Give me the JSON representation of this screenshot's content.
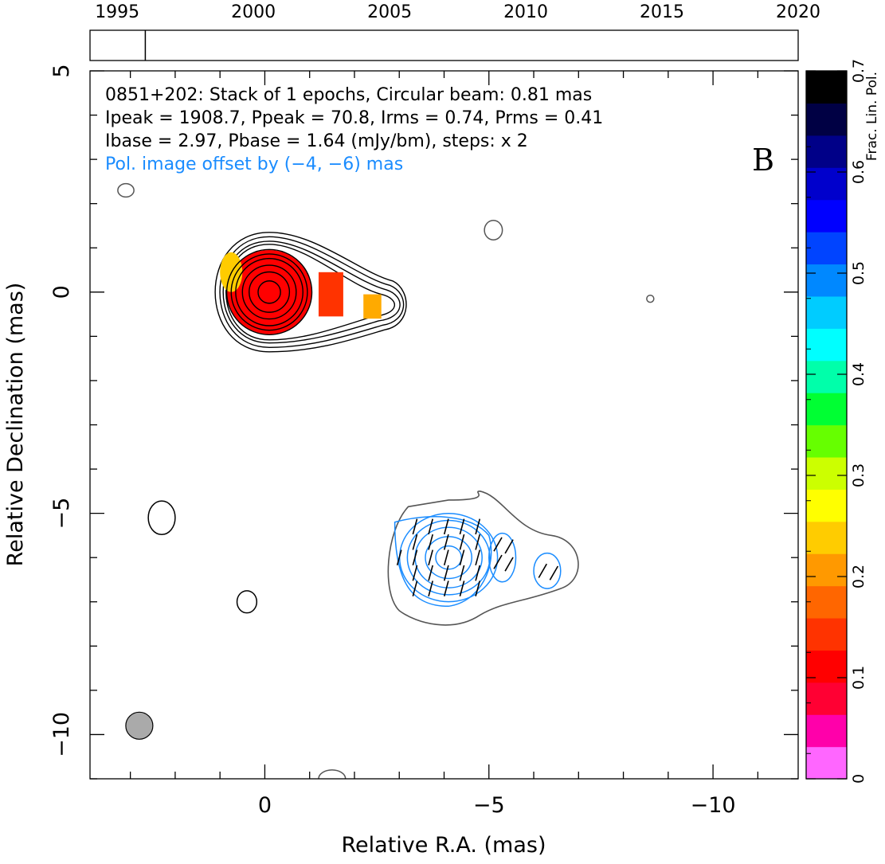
{
  "chart_data": {
    "type": "contour",
    "panel_letter": "B",
    "timeline": {
      "tick_labels": [
        "1995",
        "2000",
        "2005",
        "2010",
        "2015",
        "2020"
      ],
      "ticks": [
        1995,
        2000,
        2005,
        2010,
        2015,
        2020
      ],
      "range": [
        1994.0,
        2020.0
      ],
      "epochs": [
        1996.03
      ]
    },
    "title_lines": [
      "0851+202: Stack of 1 epochs, Circular beam: 0.81 mas",
      "Ipeak = 1908.7, Ppeak = 70.8, Irms = 0.74, Prms = 0.41",
      "Ibase = 2.97, Pbase = 1.64 (mJy/bm), steps: x 2"
    ],
    "offset_note": "Pol. image offset by (−4, −6) mas",
    "xlabel": "Relative R.A. (mas)",
    "ylabel": "Relative Declination (mas)",
    "xlim": [
      3.9,
      -11.9
    ],
    "ylim": [
      -11.0,
      5.0
    ],
    "x_ticks": [
      0,
      -5,
      -10
    ],
    "x_tick_labels": [
      "0",
      "−5",
      "−10"
    ],
    "y_ticks": [
      5,
      0,
      -5,
      -10
    ],
    "y_tick_labels": [
      "5",
      "0",
      "−5",
      "−10"
    ],
    "beam_circle": {
      "x": 2.8,
      "y": -9.8,
      "fwhm_mas": 0.81
    },
    "colorbar": {
      "label": "Frac. Lin. Pol.",
      "range": [
        0,
        0.7
      ],
      "tick_values": [
        0,
        0.1,
        0.2,
        0.3,
        0.4,
        0.5,
        0.6,
        0.7
      ],
      "tick_labels": [
        "0",
        "0.1",
        "0.2",
        "0.3",
        "0.4",
        "0.5",
        "0.6",
        "0.7"
      ],
      "colors": [
        "#ff66ff",
        "#ff00aa",
        "#ff0033",
        "#ff0000",
        "#ff3300",
        "#ff6600",
        "#ff9900",
        "#ffcc00",
        "#ffff00",
        "#ccff00",
        "#66ff00",
        "#00ff33",
        "#00ffaa",
        "#00ffff",
        "#00ccff",
        "#0088ff",
        "#0044ff",
        "#0000ff",
        "#0000cc",
        "#000088",
        "#000044",
        "#000000"
      ]
    },
    "colors": {
      "stokes_i_contours": "#000000",
      "pol_contours": "#1a8cff",
      "offset_i_contours": "#555555",
      "beam_fill": "#aaaaaa",
      "offset_note_text": "#1a8cff"
    },
    "core_component": {
      "x": -0.1,
      "y": 0.0,
      "contour_radii_mas": [
        0.25,
        0.45,
        0.6,
        0.75,
        0.85,
        0.95
      ]
    },
    "jet_component": {
      "x": -2.3,
      "y": -0.3
    },
    "polarized_image_center": {
      "x": -4.1,
      "y": -6.0,
      "contour_radii_mas": [
        0.25,
        0.45,
        0.65,
        0.8,
        0.95
      ]
    },
    "secondary_pol_components": [
      {
        "x": -5.3,
        "y": -6.0
      },
      {
        "x": -6.3,
        "y": -6.3
      }
    ],
    "isolated_contours": [
      {
        "x": 3.1,
        "y": 2.3
      },
      {
        "x": -5.1,
        "y": 1.4
      },
      {
        "x": -8.6,
        "y": -0.15
      },
      {
        "x": 2.3,
        "y": -5.1
      },
      {
        "x": 0.4,
        "y": -7.0
      },
      {
        "x": -1.5,
        "y": -11.0
      }
    ]
  }
}
